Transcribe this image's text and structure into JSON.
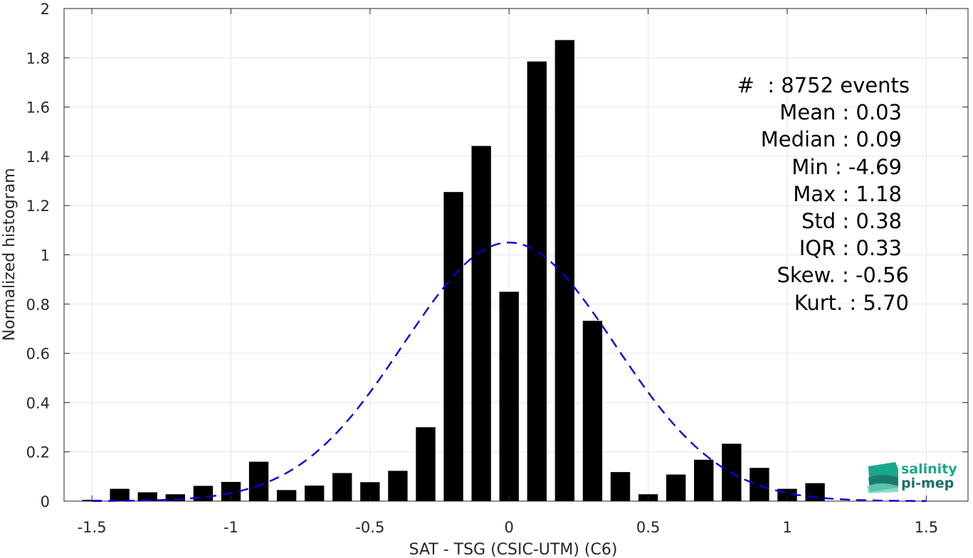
{
  "chart_data": {
    "type": "bar",
    "xlabel": "SAT - TSG (CSIC-UTM) (C6)",
    "ylabel": "Normalized histogram",
    "xlim": [
      -1.6,
      1.65
    ],
    "ylim": [
      0,
      2
    ],
    "xticks": [
      -1.5,
      -1,
      -0.5,
      0,
      0.5,
      1,
      1.5
    ],
    "xtick_labels": [
      "-1.5",
      "-1",
      "-0.5",
      "0",
      "0.5",
      "1",
      "1.5"
    ],
    "yticks": [
      0,
      0.2,
      0.4,
      0.6,
      0.8,
      1,
      1.2,
      1.4,
      1.6,
      1.8,
      2
    ],
    "ytick_labels": [
      "0",
      "0.2",
      "0.4",
      "0.6",
      "0.8",
      "1",
      "1.2",
      "1.4",
      "1.6",
      "1.8",
      "2"
    ],
    "grid": true,
    "bar_color": "#000000",
    "bar_width": 0.07,
    "bins": {
      "x": [
        -1.5,
        -1.4,
        -1.3,
        -1.2,
        -1.1,
        -1.0,
        -0.9,
        -0.8,
        -0.7,
        -0.6,
        -0.5,
        -0.4,
        -0.3,
        -0.2,
        -0.1,
        0.0,
        0.1,
        0.2,
        0.3,
        0.4,
        0.5,
        0.6,
        0.7,
        0.8,
        0.9,
        1.0,
        1.1
      ],
      "values": [
        0.005,
        0.05,
        0.036,
        0.028,
        0.062,
        0.078,
        0.16,
        0.045,
        0.063,
        0.114,
        0.077,
        0.123,
        0.3,
        1.255,
        1.442,
        0.85,
        1.785,
        1.872,
        0.732,
        0.118,
        0.028,
        0.108,
        0.168,
        0.233,
        0.135,
        0.05,
        0.073
      ]
    },
    "fit": {
      "type": "gaussian",
      "mean": 0.0,
      "peak": 1.05,
      "sigma": 0.38,
      "color": "#0000e0",
      "style": "dashed",
      "x_range": [
        -1.5,
        1.5
      ]
    }
  },
  "stats": {
    "lines": [
      "#  : 8752 events",
      "Mean : 0.03",
      "Median : 0.09",
      "Min : -4.69",
      "Max : 1.18",
      "Std : 0.38",
      "IQR : 0.33",
      "Skew. : -0.56",
      "Kurt. : 5.70"
    ]
  },
  "logo": {
    "line1": "salinity",
    "line2": "pi-mep",
    "color_top": "#1aa88a",
    "color_bottom": "#1b6e68"
  }
}
